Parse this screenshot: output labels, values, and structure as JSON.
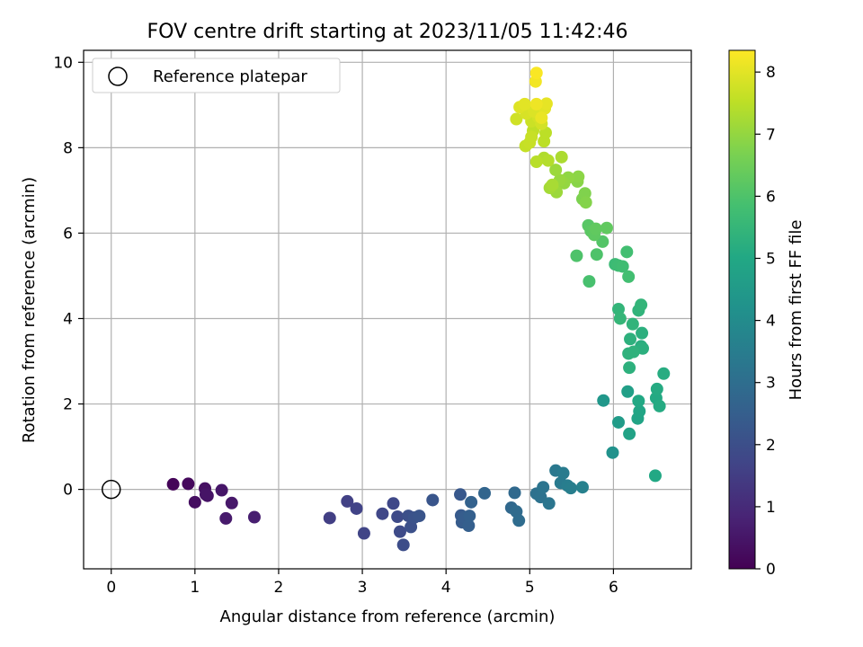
{
  "chart_data": {
    "type": "scatter",
    "title": "FOV centre drift starting at 2023/11/05 11:42:46",
    "xlabel": "Angular distance from reference (arcmin)",
    "ylabel": "Rotation from reference (arcmin)",
    "xlim": [
      -0.33,
      6.93
    ],
    "ylim": [
      -1.86,
      10.28
    ],
    "xticks": [
      "0",
      "1",
      "2",
      "3",
      "4",
      "5",
      "6"
    ],
    "yticks": [
      "0",
      "2",
      "4",
      "6",
      "8",
      "10"
    ],
    "grid": true,
    "legend": {
      "position": "top-left",
      "entries": [
        "Reference platepar"
      ]
    },
    "colorbar": {
      "label": "Hours from first FF file",
      "range": [
        0,
        8.35
      ],
      "ticks": [
        "0",
        "1",
        "2",
        "3",
        "4",
        "5",
        "6",
        "7",
        "8"
      ],
      "colormap": "viridis"
    },
    "reference": {
      "x": 0,
      "y": 0
    },
    "points": [
      [
        0.74,
        0.12,
        0.1
      ],
      [
        0.92,
        0.13,
        0.2
      ],
      [
        1.0,
        -0.3,
        0.3
      ],
      [
        1.12,
        0.02,
        0.35
      ],
      [
        1.15,
        -0.15,
        0.4
      ],
      [
        1.13,
        -0.12,
        0.45
      ],
      [
        1.32,
        -0.02,
        0.5
      ],
      [
        1.44,
        -0.32,
        0.55
      ],
      [
        1.37,
        -0.68,
        0.6
      ],
      [
        1.71,
        -0.65,
        0.7
      ],
      [
        2.61,
        -0.67,
        1.55
      ],
      [
        2.82,
        -0.28,
        1.6
      ],
      [
        2.93,
        -0.45,
        1.65
      ],
      [
        3.02,
        -1.03,
        1.7
      ],
      [
        3.24,
        -0.57,
        1.75
      ],
      [
        3.37,
        -0.33,
        1.8
      ],
      [
        3.42,
        -0.64,
        1.85
      ],
      [
        3.45,
        -0.99,
        1.9
      ],
      [
        3.49,
        -1.3,
        1.95
      ],
      [
        3.55,
        -0.62,
        2.0
      ],
      [
        3.58,
        -0.88,
        2.05
      ],
      [
        3.62,
        -0.66,
        2.1
      ],
      [
        3.68,
        -0.62,
        2.15
      ],
      [
        3.84,
        -0.25,
        2.2
      ],
      [
        4.17,
        -0.12,
        2.3
      ],
      [
        4.18,
        -0.61,
        2.35
      ],
      [
        4.19,
        -0.77,
        2.4
      ],
      [
        4.22,
        -0.65,
        2.45
      ],
      [
        4.27,
        -0.85,
        2.5
      ],
      [
        4.28,
        -0.62,
        2.55
      ],
      [
        4.3,
        -0.3,
        2.6
      ],
      [
        4.46,
        -0.09,
        2.7
      ],
      [
        4.78,
        -0.43,
        2.8
      ],
      [
        4.82,
        -0.08,
        2.85
      ],
      [
        4.84,
        -0.52,
        2.9
      ],
      [
        4.87,
        -0.73,
        2.95
      ],
      [
        5.08,
        -0.1,
        3.1
      ],
      [
        5.13,
        -0.18,
        3.15
      ],
      [
        5.16,
        0.05,
        3.2
      ],
      [
        5.23,
        -0.33,
        3.25
      ],
      [
        5.31,
        0.44,
        3.35
      ],
      [
        5.37,
        0.15,
        3.4
      ],
      [
        5.4,
        0.38,
        3.45
      ],
      [
        5.45,
        0.09,
        3.5
      ],
      [
        5.49,
        0.03,
        3.55
      ],
      [
        5.63,
        0.05,
        3.65
      ],
      [
        5.99,
        0.86,
        4.2
      ],
      [
        5.88,
        2.08,
        4.4
      ],
      [
        6.06,
        1.57,
        4.55
      ],
      [
        6.17,
        2.29,
        4.7
      ],
      [
        6.19,
        1.3,
        4.8
      ],
      [
        6.29,
        1.66,
        4.85
      ],
      [
        6.31,
        1.83,
        4.9
      ],
      [
        6.3,
        2.07,
        5.0
      ],
      [
        6.5,
        0.32,
        5.0
      ],
      [
        6.51,
        2.14,
        5.05
      ],
      [
        6.52,
        2.35,
        5.1
      ],
      [
        6.55,
        1.95,
        5.1
      ],
      [
        6.6,
        2.71,
        5.15
      ],
      [
        6.33,
        3.35,
        5.2
      ],
      [
        6.34,
        3.66,
        5.25
      ],
      [
        6.35,
        3.3,
        5.25
      ],
      [
        6.2,
        3.52,
        5.3
      ],
      [
        6.19,
        2.85,
        5.3
      ],
      [
        6.18,
        3.18,
        5.35
      ],
      [
        6.24,
        3.22,
        5.35
      ],
      [
        6.23,
        3.87,
        5.4
      ],
      [
        6.3,
        4.19,
        5.4
      ],
      [
        6.33,
        4.32,
        5.45
      ],
      [
        6.06,
        4.22,
        5.45
      ],
      [
        6.08,
        4.0,
        5.5
      ],
      [
        6.02,
        5.27,
        5.65
      ],
      [
        6.06,
        5.24,
        5.7
      ],
      [
        6.11,
        5.22,
        5.75
      ],
      [
        6.16,
        5.56,
        5.8
      ],
      [
        6.18,
        4.98,
        5.8
      ],
      [
        5.71,
        4.87,
        5.9
      ],
      [
        5.56,
        5.47,
        6.0
      ],
      [
        5.8,
        5.5,
        6.0
      ],
      [
        5.87,
        5.8,
        6.1
      ],
      [
        5.7,
        6.18,
        6.15
      ],
      [
        5.73,
        6.05,
        6.2
      ],
      [
        5.77,
        5.96,
        6.25
      ],
      [
        5.79,
        6.1,
        6.3
      ],
      [
        5.92,
        6.12,
        6.3
      ],
      [
        5.63,
        6.8,
        6.7
      ],
      [
        5.66,
        6.93,
        6.75
      ],
      [
        5.67,
        6.72,
        6.8
      ],
      [
        5.57,
        7.21,
        6.85
      ],
      [
        5.58,
        7.32,
        6.9
      ],
      [
        5.46,
        7.3,
        6.95
      ],
      [
        5.41,
        7.17,
        7.0
      ],
      [
        5.36,
        7.24,
        7.05
      ],
      [
        5.32,
        6.96,
        7.1
      ],
      [
        5.31,
        7.48,
        7.1
      ],
      [
        5.24,
        7.06,
        7.2
      ],
      [
        5.27,
        7.13,
        7.25
      ],
      [
        5.38,
        7.78,
        7.3
      ],
      [
        5.17,
        7.76,
        7.35
      ],
      [
        5.22,
        7.7,
        7.4
      ],
      [
        5.08,
        7.67,
        7.45
      ],
      [
        5.17,
        8.15,
        7.5
      ],
      [
        5.19,
        8.35,
        7.5
      ],
      [
        5.04,
        8.4,
        7.55
      ],
      [
        4.95,
        8.04,
        7.6
      ],
      [
        5.0,
        8.12,
        7.65
      ],
      [
        5.02,
        8.25,
        7.65
      ],
      [
        5.02,
        8.62,
        7.7
      ],
      [
        4.84,
        8.67,
        7.75
      ],
      [
        5.1,
        8.72,
        7.8
      ],
      [
        5.14,
        8.56,
        7.8
      ],
      [
        4.96,
        8.8,
        7.85
      ],
      [
        5.05,
        8.85,
        7.9
      ],
      [
        4.88,
        8.95,
        7.95
      ],
      [
        4.94,
        9.02,
        8.0
      ],
      [
        5.18,
        8.92,
        8.0
      ],
      [
        5.2,
        9.03,
        8.05
      ],
      [
        5.14,
        8.7,
        8.1
      ],
      [
        5.08,
        9.02,
        8.15
      ],
      [
        5.07,
        9.55,
        8.2
      ],
      [
        5.08,
        9.75,
        8.3
      ]
    ]
  }
}
